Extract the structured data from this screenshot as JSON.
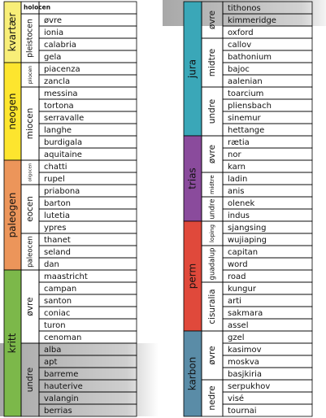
{
  "left": {
    "periods": [
      {
        "name": "kvartær",
        "color": "#f8ee78",
        "epochs": [
          {
            "name": "holocen",
            "stages": []
          },
          {
            "name": "pleistocen",
            "stages": [
              "øvre",
              "ionia",
              "calabria",
              "gela"
            ]
          }
        ]
      },
      {
        "name": "neogen",
        "color": "#fde52e",
        "epochs": [
          {
            "name": "pliocen",
            "stages": [
              "piacenza",
              "zancla"
            ]
          },
          {
            "name": "miocen",
            "stages": [
              "messina",
              "tortona",
              "serravalle",
              "langhe",
              "burdigala",
              "aquitaine"
            ]
          }
        ]
      },
      {
        "name": "paleogen",
        "color": "#ec955a",
        "epochs": [
          {
            "name": "oligocen",
            "stages": [
              "chatti",
              "rupel"
            ]
          },
          {
            "name": "eocen",
            "stages": [
              "priabona",
              "barton",
              "lutetia",
              "ypres"
            ]
          },
          {
            "name": "paleocen",
            "stages": [
              "thanet",
              "seland",
              "dan"
            ]
          }
        ]
      },
      {
        "name": "kritt",
        "color": "#7cb84a",
        "epochs": [
          {
            "name": "øvre",
            "stages": [
              "maastricht",
              "campan",
              "santon",
              "coniac",
              "turon",
              "cenoman"
            ]
          },
          {
            "name": "undre",
            "stages": [
              "alba",
              "apt",
              "barreme",
              "hauterive",
              "valangin",
              "berrias"
            ]
          }
        ]
      }
    ]
  },
  "right": {
    "periods": [
      {
        "name": "jura",
        "color": "#3aa7b8",
        "epochs": [
          {
            "name": "øvre",
            "stages": [
              "tithonos",
              "kimmeridge",
              "oxford"
            ]
          },
          {
            "name": "midtre",
            "stages": [
              "callov",
              "bathonium",
              "bajoc",
              "aalenian"
            ]
          },
          {
            "name": "undre",
            "stages": [
              "toarcium",
              "pliensbach",
              "sinemur",
              "hettange"
            ]
          }
        ]
      },
      {
        "name": "trias",
        "color": "#8a4b9c",
        "epochs": [
          {
            "name": "øvre",
            "stages": [
              "rætia",
              "nor",
              "karn"
            ]
          },
          {
            "name": "midtre",
            "stages": [
              "ladin",
              "anis"
            ]
          },
          {
            "name": "undre",
            "stages": [
              "olenek",
              "indus"
            ]
          }
        ]
      },
      {
        "name": "perm",
        "color": "#e0493b",
        "epochs": [
          {
            "name": "loping",
            "stages": [
              "sjangsing",
              "wujiaping"
            ]
          },
          {
            "name": "guadalup",
            "stages": [
              "capitan",
              "word",
              "road"
            ]
          },
          {
            "name": "cisuralia",
            "stages": [
              "kungur",
              "arti",
              "sakmara",
              "assel"
            ]
          }
        ]
      },
      {
        "name": "karbon",
        "color": "#5a8ca7",
        "epochs": [
          {
            "name": "øvre",
            "stages": [
              "gzel",
              "kasimov",
              "moskva",
              "basjkiria"
            ]
          },
          {
            "name": "nedre",
            "stages": [
              "serpukhov",
              "visé",
              "tournai"
            ]
          }
        ]
      }
    ]
  }
}
